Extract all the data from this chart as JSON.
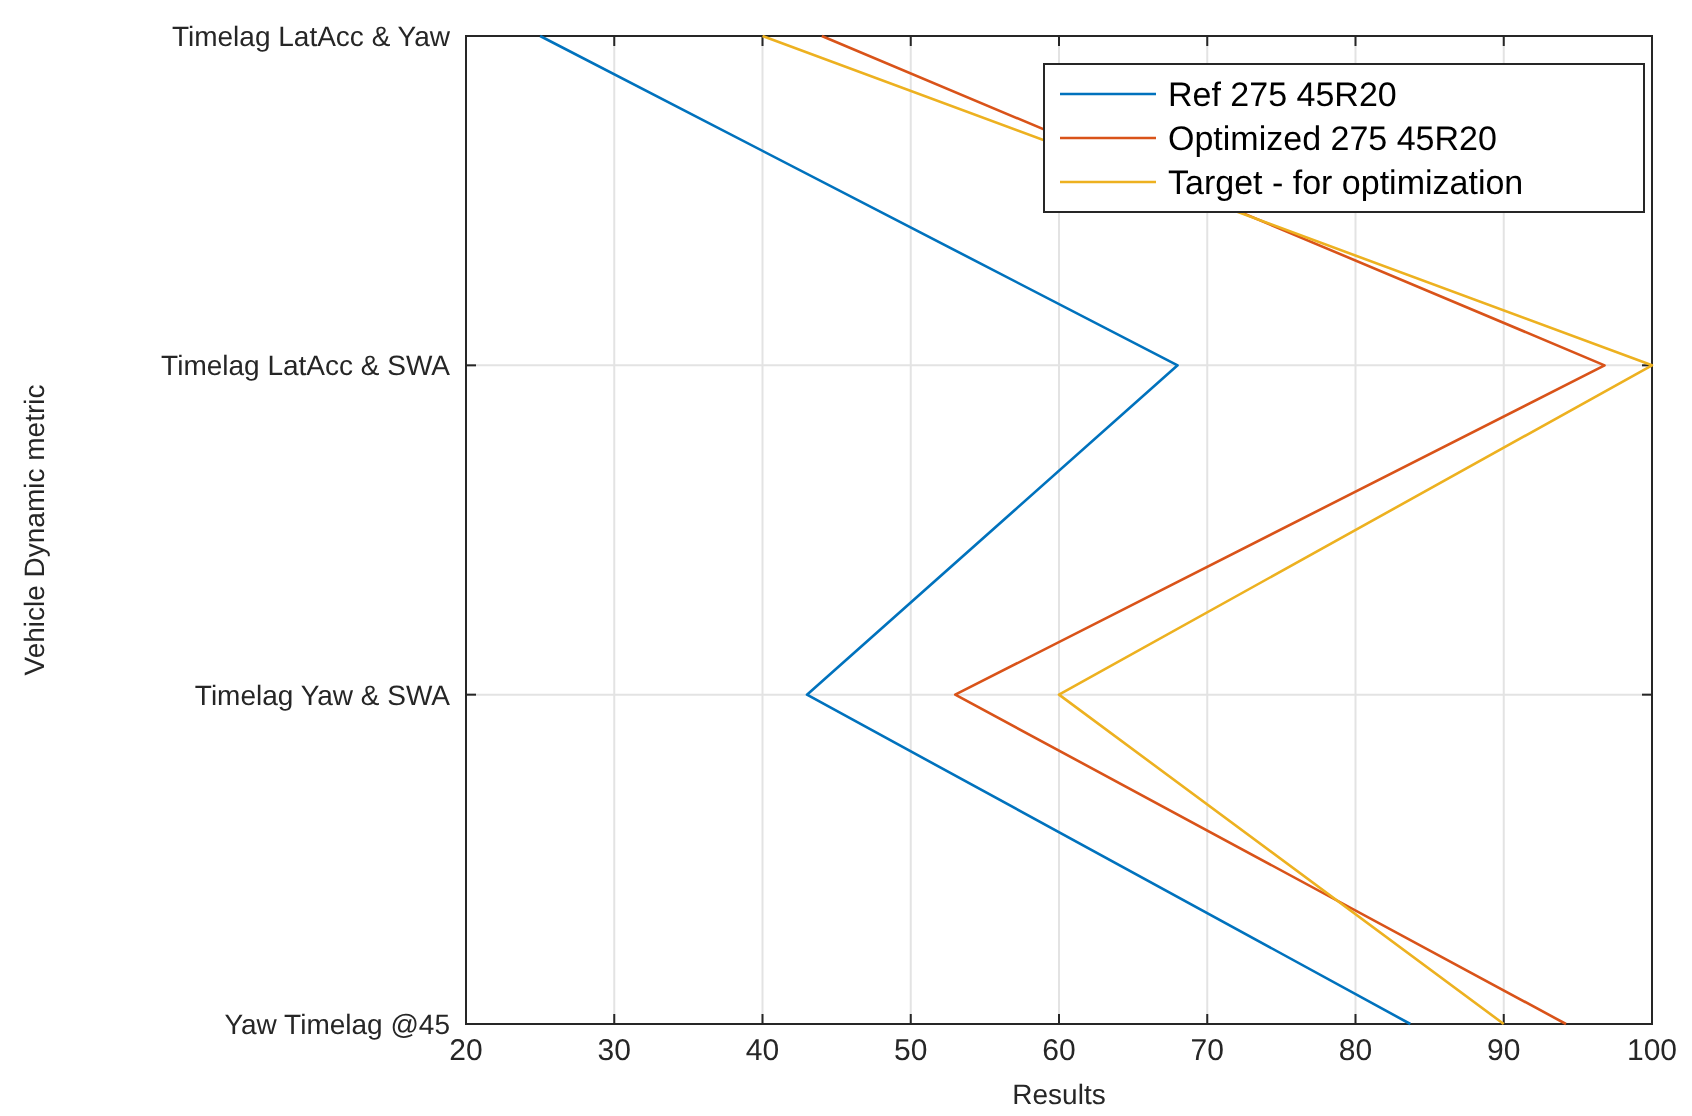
{
  "chart_data": {
    "type": "line",
    "orientation": "horizontal",
    "xlabel": "Results",
    "ylabel": "Vehicle Dynamic metric",
    "categories": [
      "Timelag LatAcc & Yaw",
      "Timelag LatAcc & SWA",
      "Timelag Yaw & SWA",
      "Yaw Timelag @45"
    ],
    "xlim": [
      20,
      100
    ],
    "xticks": [
      20,
      30,
      40,
      50,
      60,
      70,
      80,
      90,
      100
    ],
    "grid": true,
    "legend": "top right",
    "series": [
      {
        "name": "Ref 275 45R20",
        "color": "#0072bd",
        "values": [
          25,
          68,
          43,
          83.7
        ]
      },
      {
        "name": "Optimized 275 45R20",
        "color": "#d95319",
        "values": [
          44,
          96.8,
          53,
          94.2
        ]
      },
      {
        "name": "Target - for optimization",
        "color": "#edb120",
        "values": [
          40,
          100,
          60,
          90
        ]
      }
    ]
  }
}
